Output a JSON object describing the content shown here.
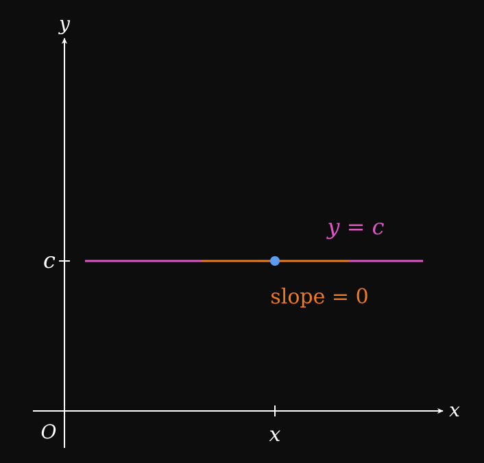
{
  "axes": {
    "x_label": "x",
    "y_label": "y",
    "origin_label": "O",
    "x_tick_label": "x",
    "y_tick_label": "c"
  },
  "line": {
    "label": "y = c",
    "color": "#e055c8"
  },
  "tangent": {
    "label": "slope = 0",
    "color": "#ee7a22"
  },
  "point": {
    "color": "#5b9cf0"
  },
  "colors": {
    "background": "#0d0d0d",
    "axis": "#ffffff"
  }
}
